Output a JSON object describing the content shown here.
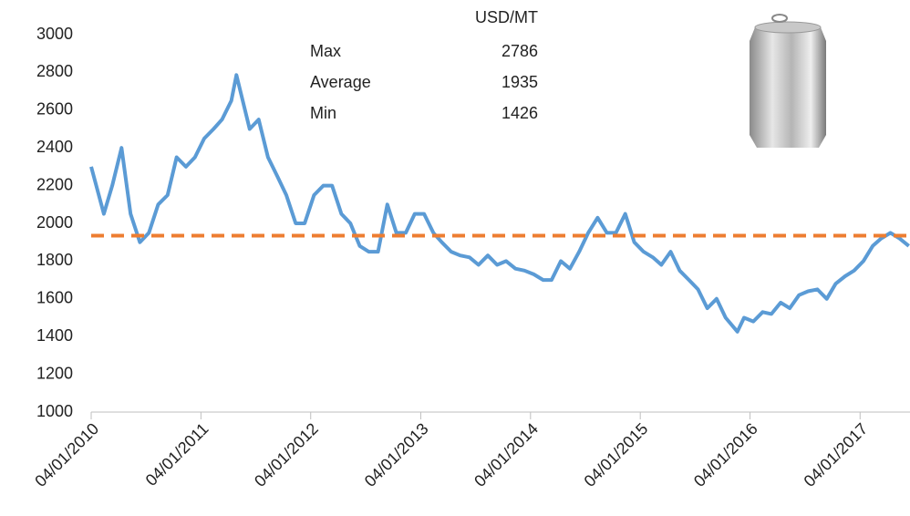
{
  "chart_data": {
    "type": "line",
    "x": [
      "2010-01-04",
      "2010-02-15",
      "2010-03-15",
      "2010-04-15",
      "2010-05-15",
      "2010-06-15",
      "2010-07-15",
      "2010-08-15",
      "2010-09-15",
      "2010-10-15",
      "2010-11-15",
      "2010-12-15",
      "2011-01-15",
      "2011-02-15",
      "2011-03-15",
      "2011-04-15",
      "2011-05-02",
      "2011-06-15",
      "2011-07-15",
      "2011-08-15",
      "2011-09-15",
      "2011-10-15",
      "2011-11-15",
      "2011-12-15",
      "2012-01-15",
      "2012-02-15",
      "2012-03-15",
      "2012-04-15",
      "2012-05-15",
      "2012-06-15",
      "2012-07-15",
      "2012-08-15",
      "2012-09-15",
      "2012-10-15",
      "2012-11-15",
      "2012-12-15",
      "2013-01-15",
      "2013-02-15",
      "2013-03-15",
      "2013-04-15",
      "2013-05-15",
      "2013-06-15",
      "2013-07-15",
      "2013-08-15",
      "2013-09-15",
      "2013-10-15",
      "2013-11-15",
      "2013-12-15",
      "2014-01-15",
      "2014-02-15",
      "2014-03-15",
      "2014-04-15",
      "2014-05-15",
      "2014-06-15",
      "2014-07-15",
      "2014-08-15",
      "2014-09-15",
      "2014-10-15",
      "2014-11-15",
      "2014-12-15",
      "2015-01-15",
      "2015-02-15",
      "2015-03-15",
      "2015-04-15",
      "2015-05-15",
      "2015-06-15",
      "2015-07-15",
      "2015-08-15",
      "2015-09-15",
      "2015-10-15",
      "2015-11-23",
      "2015-12-15",
      "2016-01-15",
      "2016-02-15",
      "2016-03-15",
      "2016-04-15",
      "2016-05-15",
      "2016-06-15",
      "2016-07-15",
      "2016-08-15",
      "2016-09-15",
      "2016-10-15",
      "2016-11-15",
      "2016-12-15",
      "2017-01-15",
      "2017-02-15",
      "2017-03-15",
      "2017-04-15",
      "2017-05-15",
      "2017-06-15"
    ],
    "series": [
      {
        "color": "#5b9bd5",
        "values": [
          2300,
          2050,
          2200,
          2400,
          2050,
          1900,
          1950,
          2100,
          2150,
          2350,
          2300,
          2350,
          2450,
          2500,
          2550,
          2650,
          2786,
          2500,
          2550,
          2350,
          2250,
          2150,
          2000,
          2000,
          2150,
          2200,
          2200,
          2050,
          2000,
          1880,
          1850,
          1850,
          2100,
          1950,
          1950,
          2050,
          2050,
          1950,
          1900,
          1850,
          1830,
          1820,
          1780,
          1830,
          1780,
          1800,
          1760,
          1750,
          1730,
          1700,
          1700,
          1800,
          1760,
          1850,
          1950,
          2030,
          1950,
          1950,
          2050,
          1900,
          1850,
          1820,
          1780,
          1850,
          1750,
          1700,
          1650,
          1550,
          1600,
          1500,
          1426,
          1500,
          1480,
          1530,
          1520,
          1580,
          1550,
          1620,
          1640,
          1650,
          1600,
          1680,
          1720,
          1750,
          1800,
          1880,
          1920,
          1950,
          1920,
          1880
        ]
      }
    ],
    "xlim": [
      "2010-01-04",
      "2017-06-19"
    ],
    "xticks": [
      {
        "value": "2010-01-04",
        "label": "04/01/2010"
      },
      {
        "value": "2011-01-04",
        "label": "04/01/2011"
      },
      {
        "value": "2012-01-04",
        "label": "04/01/2012"
      },
      {
        "value": "2013-01-04",
        "label": "04/01/2013"
      },
      {
        "value": "2014-01-04",
        "label": "04/01/2014"
      },
      {
        "value": "2015-01-04",
        "label": "04/01/2015"
      },
      {
        "value": "2016-01-04",
        "label": "04/01/2016"
      },
      {
        "value": "2017-01-04",
        "label": "04/01/2017"
      }
    ],
    "ylim": [
      1000,
      3000
    ],
    "yticks": [
      1000,
      1200,
      1400,
      1600,
      1800,
      2000,
      2200,
      2400,
      2600,
      2800,
      3000
    ],
    "annotations": {
      "header": "USD/MT",
      "rows": [
        {
          "label": "Max",
          "value": 2786
        },
        {
          "label": "Average",
          "value": 1935
        },
        {
          "label": "Min",
          "value": 1426
        }
      ]
    },
    "average_line_color": "#ed7d31"
  }
}
